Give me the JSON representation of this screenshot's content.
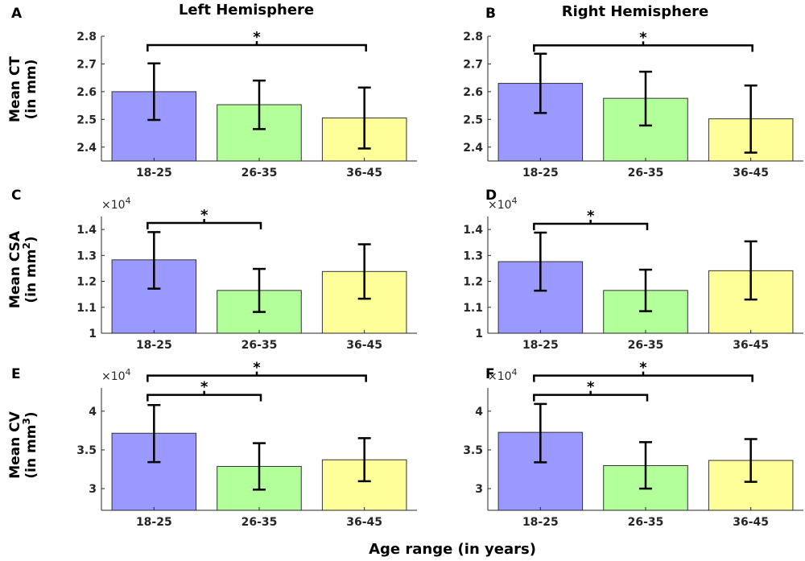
{
  "figure": {
    "col_titles": [
      "Left Hemisphere",
      "Right Hemisphere"
    ],
    "x_axis_label": "Age range (in years)",
    "row_ylabels": [
      {
        "line1": "Mean CT",
        "line2": "(in mm)",
        "sup": ""
      },
      {
        "line1": "Mean CSA",
        "line2": "(in mm",
        "sup": "2",
        "close": ")"
      },
      {
        "line1": "Mean CV",
        "line2": "(in mm",
        "sup": "3",
        "close": ")"
      }
    ]
  },
  "colors": {
    "18-25": "#9999ff",
    "26-35": "#b3ff99",
    "36-45": "#ffff99"
  },
  "chart_data": [
    {
      "panel": "A",
      "hemisphere": "Left Hemisphere",
      "measure": "Mean CT",
      "type": "bar",
      "categories": [
        "18-25",
        "26-35",
        "36-45"
      ],
      "values": [
        2.6,
        2.553,
        2.505
      ],
      "error_low": [
        2.498,
        2.465,
        2.395
      ],
      "error_high": [
        2.702,
        2.64,
        2.615
      ],
      "ylim": [
        2.35,
        2.8
      ],
      "yticks": [
        2.4,
        2.5,
        2.6,
        2.7,
        2.8
      ],
      "ytick_labels": [
        "2.4",
        "2.5",
        "2.6",
        "2.7",
        "2.8"
      ],
      "multiplier": "",
      "exponent": "",
      "brackets": [
        {
          "from": 0,
          "to": 2,
          "label": "*",
          "level": 2.768
        }
      ]
    },
    {
      "panel": "B",
      "hemisphere": "Right Hemisphere",
      "measure": "Mean CT",
      "type": "bar",
      "categories": [
        "18-25",
        "26-35",
        "36-45"
      ],
      "values": [
        2.63,
        2.576,
        2.502
      ],
      "error_low": [
        2.523,
        2.478,
        2.38
      ],
      "error_high": [
        2.737,
        2.672,
        2.622
      ],
      "ylim": [
        2.35,
        2.8
      ],
      "yticks": [
        2.4,
        2.5,
        2.6,
        2.7,
        2.8
      ],
      "ytick_labels": [
        "2.4",
        "2.5",
        "2.6",
        "2.7",
        "2.8"
      ],
      "multiplier": "",
      "exponent": "",
      "brackets": [
        {
          "from": 0,
          "to": 2,
          "label": "*",
          "level": 2.767
        }
      ]
    },
    {
      "panel": "C",
      "hemisphere": "Left Hemisphere",
      "measure": "Mean CSA",
      "type": "bar",
      "categories": [
        "18-25",
        "26-35",
        "36-45"
      ],
      "values": [
        1.283,
        1.165,
        1.238
      ],
      "error_low": [
        1.172,
        1.082,
        1.133
      ],
      "error_high": [
        1.39,
        1.248,
        1.343
      ],
      "ylim": [
        1.0,
        1.45
      ],
      "yticks": [
        1.0,
        1.1,
        1.2,
        1.3,
        1.4
      ],
      "ytick_labels": [
        "1",
        "1.1",
        "1.2",
        "1.3",
        "1.4"
      ],
      "multiplier": "×10",
      "exponent": "4",
      "brackets": [
        {
          "from": 0,
          "to": 1,
          "label": "*",
          "level": 1.425
        }
      ]
    },
    {
      "panel": "D",
      "hemisphere": "Right Hemisphere",
      "measure": "Mean CSA",
      "type": "bar",
      "categories": [
        "18-25",
        "26-35",
        "36-45"
      ],
      "values": [
        1.276,
        1.165,
        1.241
      ],
      "error_low": [
        1.164,
        1.085,
        1.13
      ],
      "error_high": [
        1.388,
        1.245,
        1.354
      ],
      "ylim": [
        1.0,
        1.45
      ],
      "yticks": [
        1.0,
        1.1,
        1.2,
        1.3,
        1.4
      ],
      "ytick_labels": [
        "1",
        "1.1",
        "1.2",
        "1.3",
        "1.4"
      ],
      "multiplier": "×10",
      "exponent": "4",
      "brackets": [
        {
          "from": 0,
          "to": 1,
          "label": "*",
          "level": 1.422
        }
      ]
    },
    {
      "panel": "E",
      "hemisphere": "Left Hemisphere",
      "measure": "Mean CV",
      "type": "bar",
      "categories": [
        "18-25",
        "26-35",
        "36-45"
      ],
      "values": [
        3.715,
        3.287,
        3.372
      ],
      "error_low": [
        3.343,
        2.987,
        3.096
      ],
      "error_high": [
        4.079,
        3.587,
        3.652
      ],
      "ylim": [
        2.72,
        4.3
      ],
      "yticks": [
        3.0,
        3.5,
        4.0
      ],
      "ytick_labels": [
        "3",
        "3.5",
        "4"
      ],
      "multiplier": "×10",
      "exponent": "4",
      "brackets": [
        {
          "from": 0,
          "to": 1,
          "label": "*",
          "level": 4.21
        },
        {
          "from": 0,
          "to": 2,
          "label": "*",
          "level": 4.46
        }
      ]
    },
    {
      "panel": "F",
      "hemisphere": "Right Hemisphere",
      "measure": "Mean CV",
      "type": "bar",
      "categories": [
        "18-25",
        "26-35",
        "36-45"
      ],
      "values": [
        3.727,
        3.297,
        3.364
      ],
      "error_low": [
        3.34,
        3.0,
        3.088
      ],
      "error_high": [
        4.093,
        3.6,
        3.64
      ],
      "ylim": [
        2.72,
        4.3
      ],
      "yticks": [
        3.0,
        3.5,
        4.0
      ],
      "ytick_labels": [
        "3",
        "3.5",
        "4"
      ],
      "multiplier": "×10",
      "exponent": "4",
      "brackets": [
        {
          "from": 0,
          "to": 1,
          "label": "*",
          "level": 4.21
        },
        {
          "from": 0,
          "to": 2,
          "label": "*",
          "level": 4.46
        }
      ]
    }
  ]
}
